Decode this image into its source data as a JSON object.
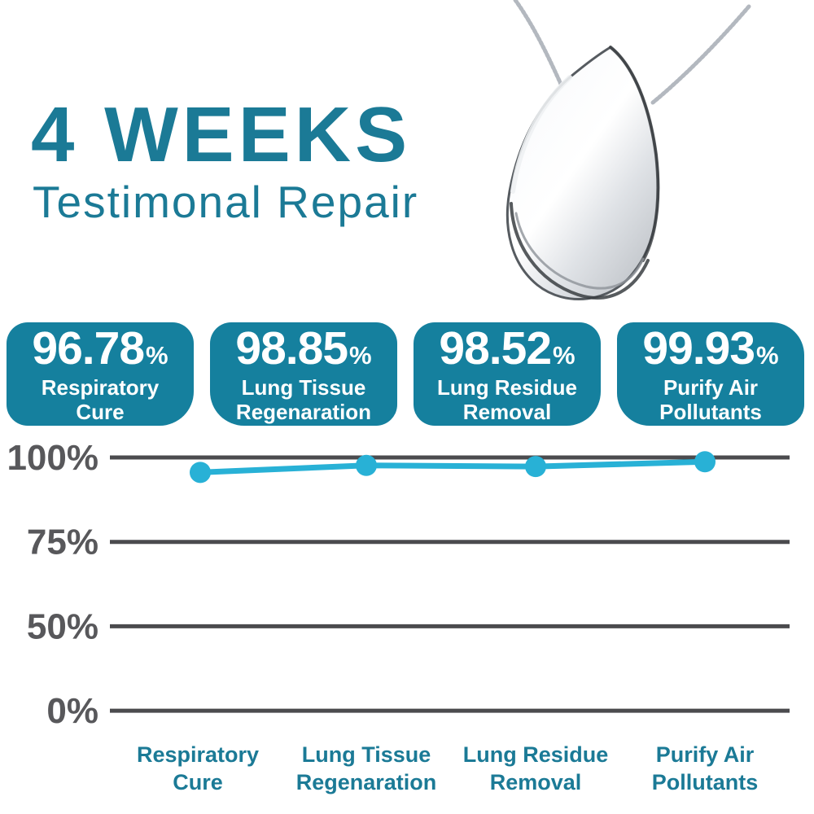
{
  "header": {
    "title": "4 WEEKS",
    "subtitle": "Testimonal Repair"
  },
  "product_image": {
    "icon": "teardrop-pendant-necklace"
  },
  "stats": [
    {
      "value": "96.78",
      "unit": "%",
      "label": "Respiratory Cure"
    },
    {
      "value": "98.85",
      "unit": "%",
      "label": "Lung Tissue Regenaration"
    },
    {
      "value": "98.52",
      "unit": "%",
      "label": "Lung Residue Removal"
    },
    {
      "value": "99.93",
      "unit": "%",
      "label": "Purify Air Pollutants"
    }
  ],
  "chart_data": {
    "type": "line",
    "categories": [
      "Respiratory Cure",
      "Lung Tissue Regenaration",
      "Lung Residue Removal",
      "Purify Air Pollutants"
    ],
    "values": [
      96.78,
      98.85,
      98.52,
      99.93
    ],
    "ytick_labels": [
      "100%",
      "75%",
      "50%",
      "0%"
    ],
    "ytick_values": [
      100,
      75,
      50,
      0
    ],
    "ylim": [
      0,
      100
    ],
    "grid": true,
    "legend": false,
    "marker": "circle",
    "line_color": "#28B1D6",
    "marker_color": "#28B1D6",
    "gridline_color": "#4B4B4E",
    "ytick_color": "#58585B",
    "xtick_color": "#1B7A96"
  },
  "colors": {
    "brand_teal": "#1B7A96",
    "stat_box_bg": "#15809E",
    "stat_box_text": "#FFFFFF",
    "line_cyan": "#28B1D6",
    "grid_gray": "#4B4B4E",
    "background": "#FFFFFF"
  }
}
